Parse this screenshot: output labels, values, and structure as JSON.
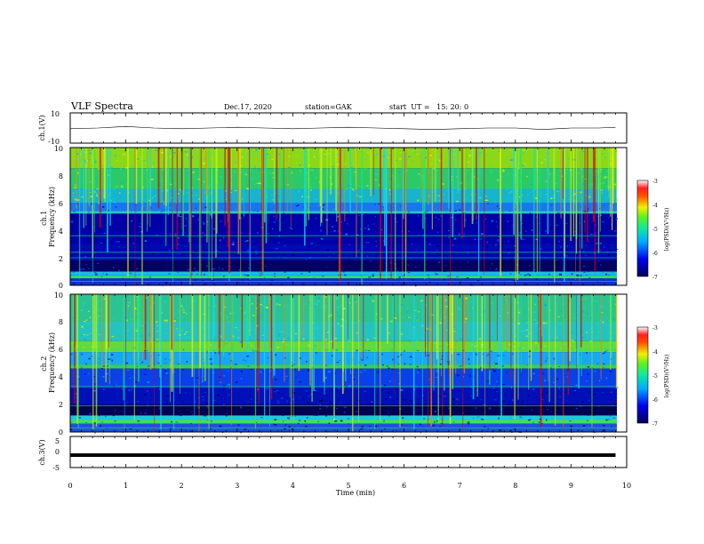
{
  "header": {
    "title": "VLF Spectra",
    "date": "Dec.17, 2020",
    "station": "station=GAK",
    "start": "start  UT =   15: 20: 0"
  },
  "chart_data": [
    {
      "type": "line",
      "title": "",
      "ylabel": "ch.1(V)",
      "xlabel": "",
      "xlim": [
        0,
        10
      ],
      "ylim": [
        -10,
        10
      ],
      "yticks": [
        "10",
        "-10"
      ],
      "series": [
        {
          "x": [
            0,
            0.5,
            1,
            1.5,
            2,
            2.5,
            3,
            3.5,
            4,
            4.5,
            5,
            5.5,
            6,
            6.5,
            7,
            7.5,
            8,
            8.5,
            9,
            9.5,
            9.8
          ],
          "values": [
            -0.5,
            0,
            1,
            0,
            -0.5,
            0,
            0.5,
            0,
            -0.5,
            0,
            0.5,
            0,
            -0.5,
            -1,
            -0.5,
            0,
            0,
            -1,
            0,
            0,
            0.5
          ]
        }
      ]
    },
    {
      "type": "heatmap",
      "title": "",
      "ylabel": "ch.1\nFrequency (kHz)",
      "xlim": [
        0,
        10
      ],
      "ylim": [
        0,
        10
      ],
      "yticks": [
        "0",
        "2",
        "4",
        "6",
        "8",
        "10"
      ],
      "colorbar": {
        "label": "log(PSD)(V²/Hz)",
        "range": [
          -7,
          -3
        ],
        "ticks": [
          "-3",
          "-4",
          "-5",
          "-6",
          "-7"
        ]
      }
    },
    {
      "type": "heatmap",
      "title": "",
      "ylabel": "ch.2\nFrequency (kHz)",
      "xlim": [
        0,
        10
      ],
      "ylim": [
        0,
        10
      ],
      "yticks": [
        "0",
        "2",
        "4",
        "6",
        "8",
        "10"
      ],
      "colorbar": {
        "label": "log(PSD)(V²/Hz)",
        "range": [
          -7,
          -3
        ],
        "ticks": [
          "-3",
          "-4",
          "-5",
          "-6",
          "-7"
        ]
      }
    },
    {
      "type": "line",
      "title": "",
      "ylabel": "ch.3(V)",
      "xlabel": "Time (min)",
      "xlim": [
        0,
        10
      ],
      "ylim": [
        -5,
        5
      ],
      "yticks": [
        "5",
        "0",
        "-5"
      ],
      "xticks": [
        "0",
        "1",
        "2",
        "3",
        "4",
        "5",
        "6",
        "7",
        "8",
        "9",
        "10"
      ],
      "series": [
        {
          "x": [
            0,
            9.8
          ],
          "values": [
            -1,
            -1
          ]
        }
      ]
    }
  ],
  "colors": {
    "colormap": [
      "#000033",
      "#0000b0",
      "#1e3cff",
      "#00aaff",
      "#18d8e8",
      "#20e870",
      "#a8f020",
      "#f0f000",
      "#ff8000",
      "#e00000",
      "#ff6060",
      "#ffffff"
    ],
    "axis": "#000000"
  }
}
